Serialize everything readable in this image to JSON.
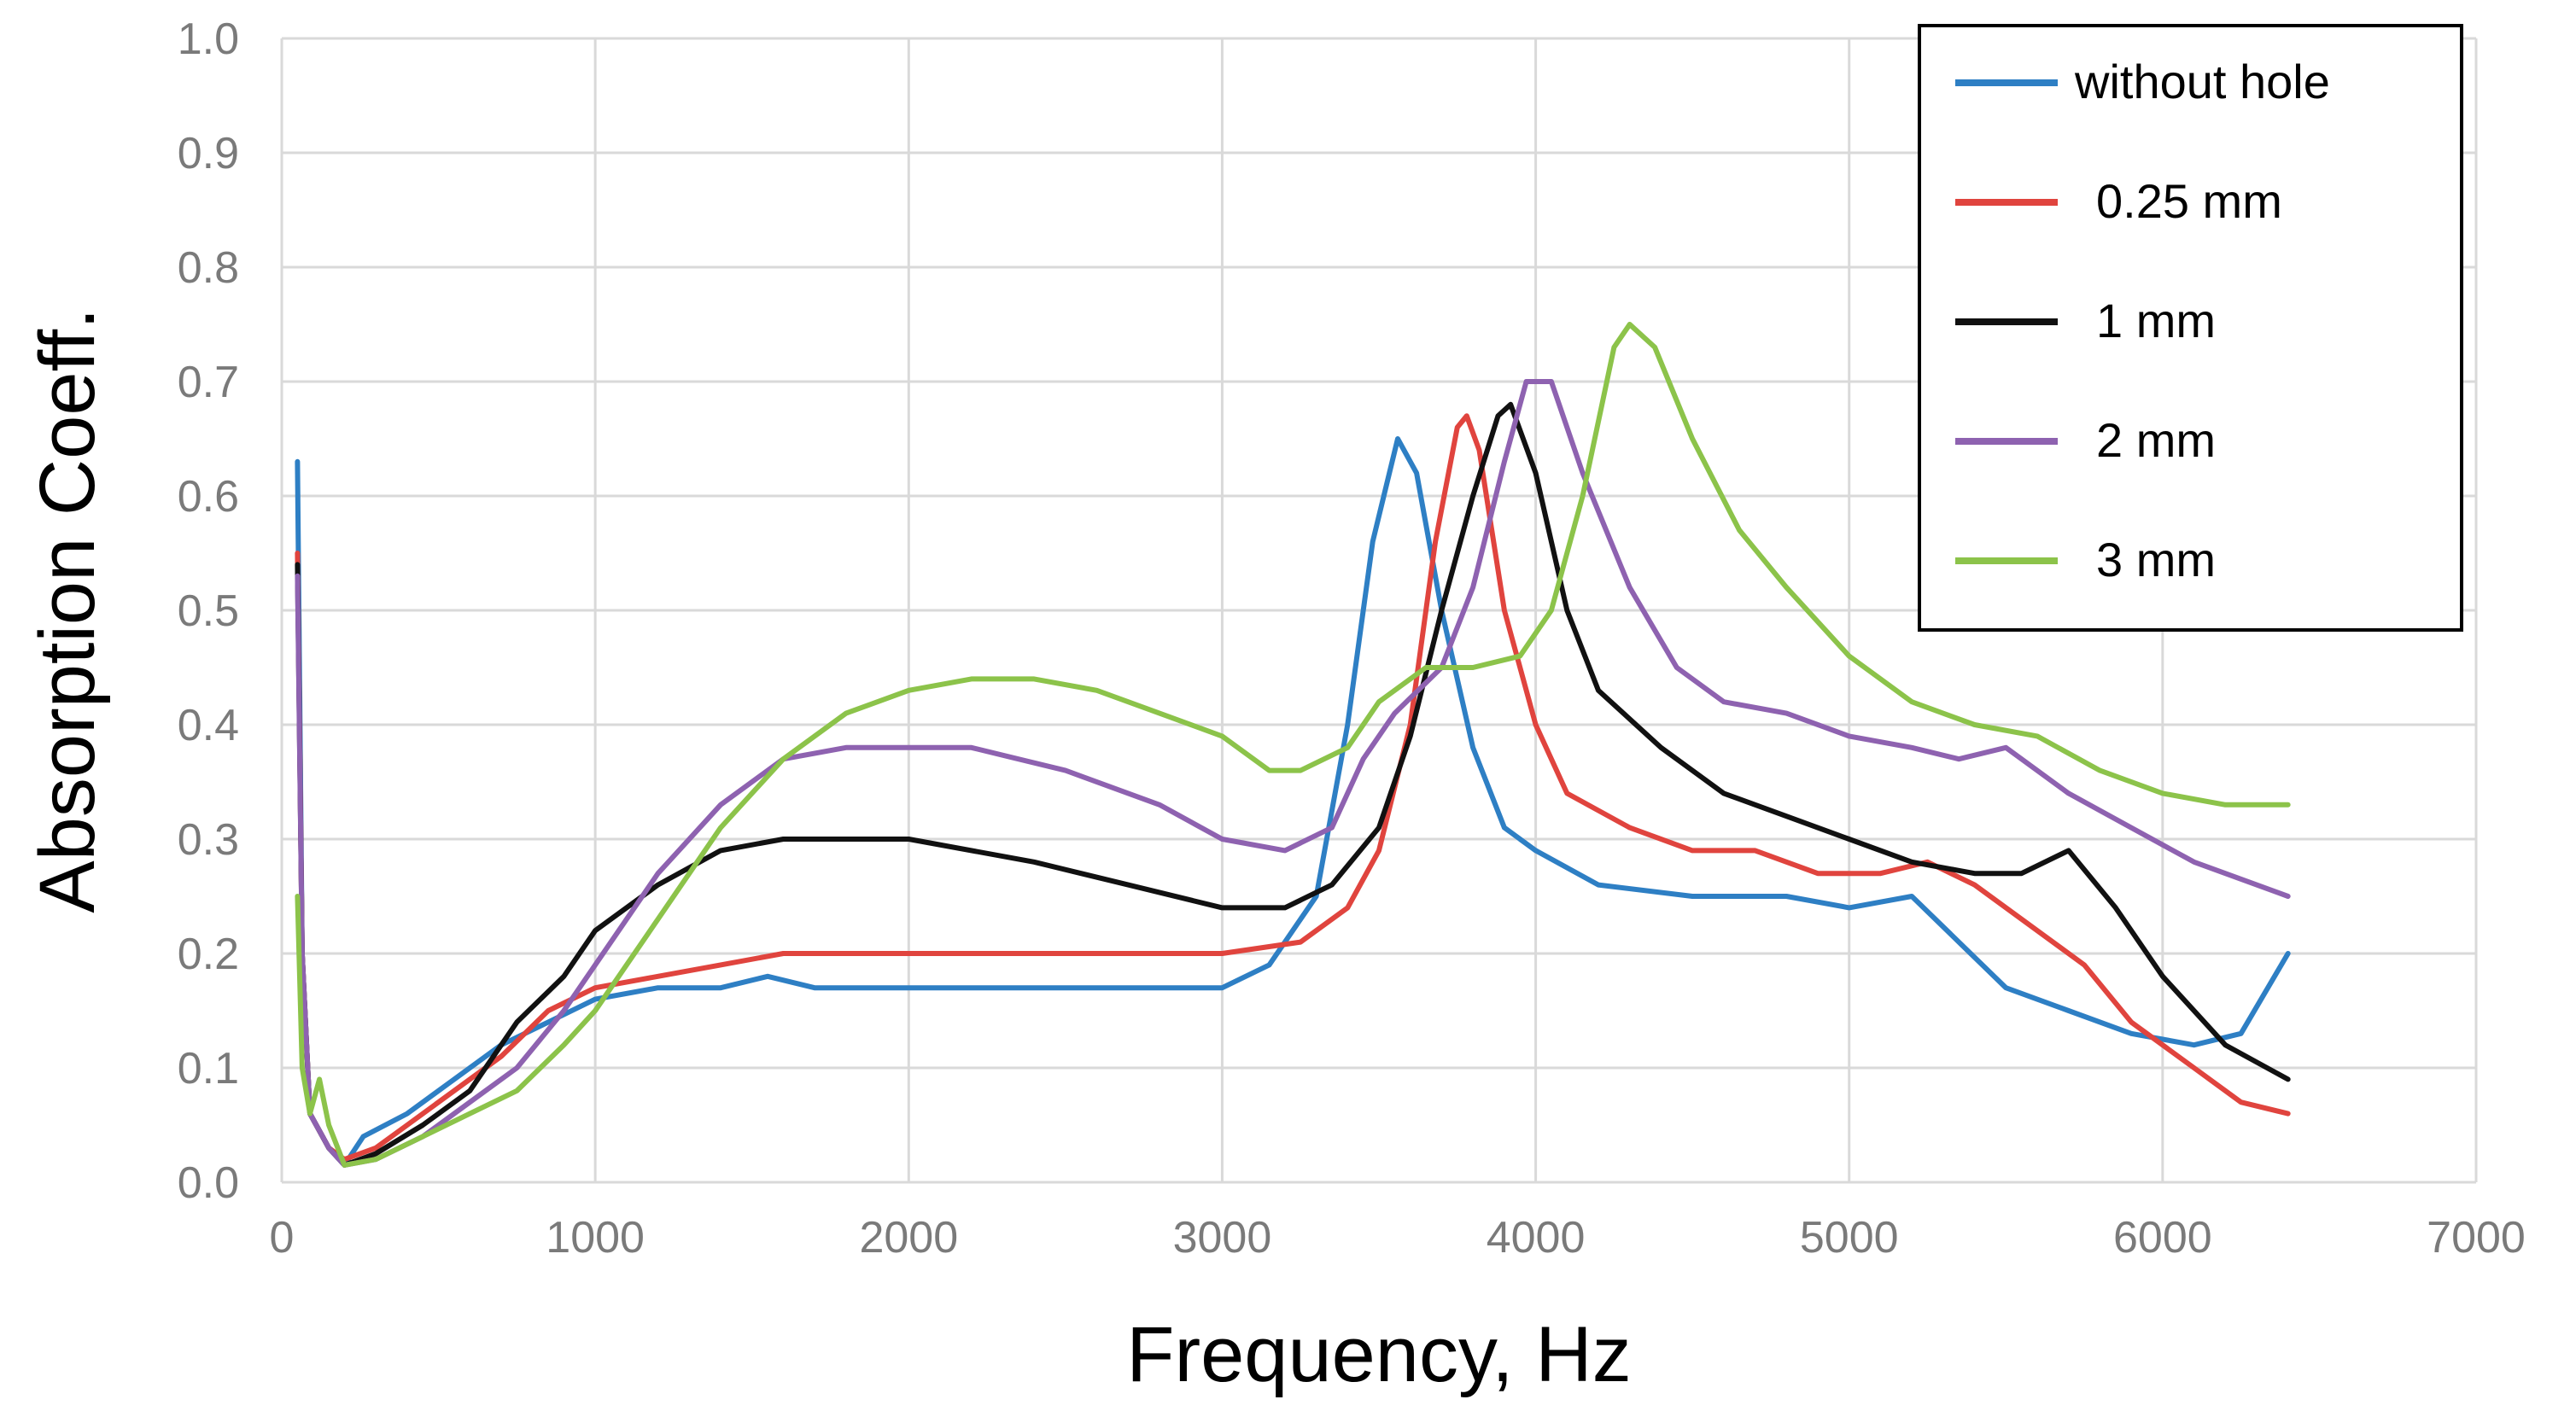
{
  "chart_data": {
    "type": "line",
    "title": "",
    "xlabel": "Frequency, Hz",
    "ylabel": "Absorption Coeff.",
    "xlim": [
      0,
      7000
    ],
    "ylim": [
      0.0,
      1.0
    ],
    "xticks": [
      0,
      1000,
      2000,
      3000,
      4000,
      5000,
      6000,
      7000
    ],
    "xtick_labels": [
      "0",
      "1000",
      "2000",
      "3000",
      "4000",
      "5000",
      "6000",
      "7000"
    ],
    "yticks": [
      0.0,
      0.1,
      0.2,
      0.3,
      0.4,
      0.5,
      0.6,
      0.7,
      0.8,
      0.9,
      1.0
    ],
    "ytick_labels": [
      "0.0",
      "0.1",
      "0.2",
      "0.3",
      "0.4",
      "0.5",
      "0.6",
      "0.7",
      "0.8",
      "0.9",
      "1.0"
    ],
    "grid": true,
    "legend_position": "top-right",
    "series": [
      {
        "name": "without hole",
        "color": "#2e7fc4",
        "points": [
          [
            50,
            0.63
          ],
          [
            65,
            0.2
          ],
          [
            90,
            0.06
          ],
          [
            150,
            0.03
          ],
          [
            200,
            0.015
          ],
          [
            260,
            0.04
          ],
          [
            400,
            0.06
          ],
          [
            550,
            0.09
          ],
          [
            700,
            0.12
          ],
          [
            850,
            0.14
          ],
          [
            1000,
            0.16
          ],
          [
            1200,
            0.17
          ],
          [
            1400,
            0.17
          ],
          [
            1550,
            0.18
          ],
          [
            1700,
            0.17
          ],
          [
            2000,
            0.17
          ],
          [
            2500,
            0.17
          ],
          [
            3000,
            0.17
          ],
          [
            3150,
            0.19
          ],
          [
            3300,
            0.25
          ],
          [
            3400,
            0.4
          ],
          [
            3480,
            0.56
          ],
          [
            3560,
            0.65
          ],
          [
            3620,
            0.62
          ],
          [
            3700,
            0.5
          ],
          [
            3800,
            0.38
          ],
          [
            3900,
            0.31
          ],
          [
            4000,
            0.29
          ],
          [
            4200,
            0.26
          ],
          [
            4500,
            0.25
          ],
          [
            4800,
            0.25
          ],
          [
            5000,
            0.24
          ],
          [
            5200,
            0.25
          ],
          [
            5350,
            0.21
          ],
          [
            5500,
            0.17
          ],
          [
            5700,
            0.15
          ],
          [
            5900,
            0.13
          ],
          [
            6100,
            0.12
          ],
          [
            6250,
            0.13
          ],
          [
            6400,
            0.2
          ]
        ]
      },
      {
        "name": "0.25 mm",
        "color": "#e0443e",
        "points": [
          [
            50,
            0.55
          ],
          [
            65,
            0.2
          ],
          [
            90,
            0.06
          ],
          [
            150,
            0.03
          ],
          [
            200,
            0.02
          ],
          [
            300,
            0.03
          ],
          [
            400,
            0.05
          ],
          [
            550,
            0.08
          ],
          [
            700,
            0.11
          ],
          [
            850,
            0.15
          ],
          [
            1000,
            0.17
          ],
          [
            1200,
            0.18
          ],
          [
            1400,
            0.19
          ],
          [
            1600,
            0.2
          ],
          [
            2000,
            0.2
          ],
          [
            2500,
            0.2
          ],
          [
            3000,
            0.2
          ],
          [
            3250,
            0.21
          ],
          [
            3400,
            0.24
          ],
          [
            3500,
            0.29
          ],
          [
            3600,
            0.4
          ],
          [
            3680,
            0.56
          ],
          [
            3750,
            0.66
          ],
          [
            3780,
            0.67
          ],
          [
            3820,
            0.64
          ],
          [
            3900,
            0.5
          ],
          [
            4000,
            0.4
          ],
          [
            4100,
            0.34
          ],
          [
            4300,
            0.31
          ],
          [
            4500,
            0.29
          ],
          [
            4700,
            0.29
          ],
          [
            4900,
            0.27
          ],
          [
            5100,
            0.27
          ],
          [
            5250,
            0.28
          ],
          [
            5400,
            0.26
          ],
          [
            5600,
            0.22
          ],
          [
            5750,
            0.19
          ],
          [
            5900,
            0.14
          ],
          [
            6100,
            0.1
          ],
          [
            6250,
            0.07
          ],
          [
            6400,
            0.06
          ]
        ]
      },
      {
        "name": "1 mm",
        "color": "#111111",
        "points": [
          [
            50,
            0.54
          ],
          [
            65,
            0.2
          ],
          [
            90,
            0.06
          ],
          [
            150,
            0.03
          ],
          [
            200,
            0.015
          ],
          [
            300,
            0.025
          ],
          [
            450,
            0.05
          ],
          [
            600,
            0.08
          ],
          [
            750,
            0.14
          ],
          [
            900,
            0.18
          ],
          [
            1000,
            0.22
          ],
          [
            1200,
            0.26
          ],
          [
            1400,
            0.29
          ],
          [
            1600,
            0.3
          ],
          [
            1800,
            0.3
          ],
          [
            2000,
            0.3
          ],
          [
            2400,
            0.28
          ],
          [
            2700,
            0.26
          ],
          [
            3000,
            0.24
          ],
          [
            3200,
            0.24
          ],
          [
            3350,
            0.26
          ],
          [
            3500,
            0.31
          ],
          [
            3600,
            0.39
          ],
          [
            3700,
            0.5
          ],
          [
            3800,
            0.6
          ],
          [
            3880,
            0.67
          ],
          [
            3920,
            0.68
          ],
          [
            4000,
            0.62
          ],
          [
            4100,
            0.5
          ],
          [
            4200,
            0.43
          ],
          [
            4400,
            0.38
          ],
          [
            4600,
            0.34
          ],
          [
            4800,
            0.32
          ],
          [
            5000,
            0.3
          ],
          [
            5200,
            0.28
          ],
          [
            5400,
            0.27
          ],
          [
            5550,
            0.27
          ],
          [
            5700,
            0.29
          ],
          [
            5850,
            0.24
          ],
          [
            6000,
            0.18
          ],
          [
            6200,
            0.12
          ],
          [
            6400,
            0.09
          ]
        ]
      },
      {
        "name": "2 mm",
        "color": "#8e62b0",
        "points": [
          [
            50,
            0.53
          ],
          [
            65,
            0.2
          ],
          [
            90,
            0.06
          ],
          [
            150,
            0.03
          ],
          [
            200,
            0.015
          ],
          [
            300,
            0.02
          ],
          [
            450,
            0.04
          ],
          [
            600,
            0.07
          ],
          [
            750,
            0.1
          ],
          [
            900,
            0.15
          ],
          [
            1000,
            0.19
          ],
          [
            1200,
            0.27
          ],
          [
            1400,
            0.33
          ],
          [
            1600,
            0.37
          ],
          [
            1800,
            0.38
          ],
          [
            2000,
            0.38
          ],
          [
            2200,
            0.38
          ],
          [
            2500,
            0.36
          ],
          [
            2800,
            0.33
          ],
          [
            3000,
            0.3
          ],
          [
            3200,
            0.29
          ],
          [
            3350,
            0.31
          ],
          [
            3450,
            0.37
          ],
          [
            3550,
            0.41
          ],
          [
            3700,
            0.45
          ],
          [
            3800,
            0.52
          ],
          [
            3900,
            0.63
          ],
          [
            3970,
            0.7
          ],
          [
            4050,
            0.7
          ],
          [
            4150,
            0.62
          ],
          [
            4300,
            0.52
          ],
          [
            4450,
            0.45
          ],
          [
            4600,
            0.42
          ],
          [
            4800,
            0.41
          ],
          [
            5000,
            0.39
          ],
          [
            5200,
            0.38
          ],
          [
            5350,
            0.37
          ],
          [
            5500,
            0.38
          ],
          [
            5700,
            0.34
          ],
          [
            5900,
            0.31
          ],
          [
            6100,
            0.28
          ],
          [
            6400,
            0.25
          ]
        ]
      },
      {
        "name": "3 mm",
        "color": "#8cc34a",
        "points": [
          [
            50,
            0.25
          ],
          [
            65,
            0.1
          ],
          [
            90,
            0.06
          ],
          [
            120,
            0.09
          ],
          [
            150,
            0.05
          ],
          [
            200,
            0.015
          ],
          [
            300,
            0.02
          ],
          [
            450,
            0.04
          ],
          [
            600,
            0.06
          ],
          [
            750,
            0.08
          ],
          [
            900,
            0.12
          ],
          [
            1000,
            0.15
          ],
          [
            1200,
            0.23
          ],
          [
            1400,
            0.31
          ],
          [
            1600,
            0.37
          ],
          [
            1800,
            0.41
          ],
          [
            2000,
            0.43
          ],
          [
            2200,
            0.44
          ],
          [
            2400,
            0.44
          ],
          [
            2600,
            0.43
          ],
          [
            2800,
            0.41
          ],
          [
            3000,
            0.39
          ],
          [
            3150,
            0.36
          ],
          [
            3250,
            0.36
          ],
          [
            3400,
            0.38
          ],
          [
            3500,
            0.42
          ],
          [
            3650,
            0.45
          ],
          [
            3800,
            0.45
          ],
          [
            3950,
            0.46
          ],
          [
            4050,
            0.5
          ],
          [
            4150,
            0.6
          ],
          [
            4250,
            0.73
          ],
          [
            4300,
            0.75
          ],
          [
            4380,
            0.73
          ],
          [
            4500,
            0.65
          ],
          [
            4650,
            0.57
          ],
          [
            4800,
            0.52
          ],
          [
            5000,
            0.46
          ],
          [
            5200,
            0.42
          ],
          [
            5400,
            0.4
          ],
          [
            5600,
            0.39
          ],
          [
            5800,
            0.36
          ],
          [
            6000,
            0.34
          ],
          [
            6200,
            0.33
          ],
          [
            6400,
            0.33
          ]
        ]
      }
    ]
  }
}
